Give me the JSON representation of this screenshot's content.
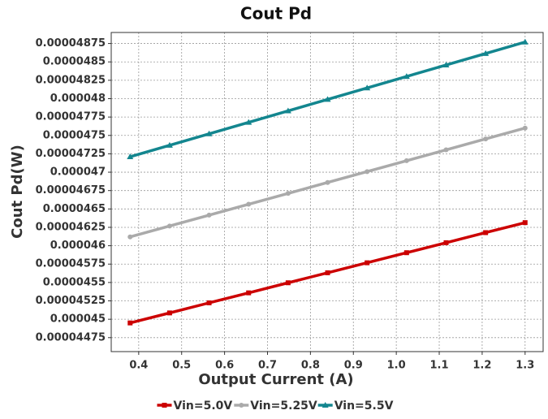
{
  "chart_data": {
    "type": "line",
    "title": "Cout Pd",
    "xlabel": "Output Current (A)",
    "ylabel": "Cout Pd(W)",
    "x": [
      0.38,
      0.472,
      0.564,
      0.656,
      0.748,
      0.84,
      0.932,
      1.024,
      1.116,
      1.208,
      1.3
    ],
    "series": [
      {
        "name": "Vin=5.0V",
        "color": "#cc0000",
        "marker": "square",
        "values": [
          4.495e-05,
          4.5086e-05,
          4.5223e-05,
          4.5359e-05,
          4.5496e-05,
          4.5632e-05,
          4.5768e-05,
          4.5905e-05,
          4.6041e-05,
          4.6178e-05,
          4.6314e-05
        ]
      },
      {
        "name": "Vin=5.25V",
        "color": "#aaaaaa",
        "marker": "circle",
        "values": [
          4.612e-05,
          4.6268e-05,
          4.6416e-05,
          4.6564e-05,
          4.6712e-05,
          4.686e-05,
          4.7008e-05,
          4.7156e-05,
          4.7304e-05,
          4.7452e-05,
          4.76e-05
        ]
      },
      {
        "name": "Vin=5.5V",
        "color": "#13868f",
        "marker": "triangle",
        "values": [
          4.721e-05,
          4.7366e-05,
          4.7522e-05,
          4.7678e-05,
          4.7834e-05,
          4.799e-05,
          4.8146e-05,
          4.8302e-05,
          4.8458e-05,
          4.8614e-05,
          4.877e-05
        ]
      }
    ],
    "xlim": [
      0.336,
      1.342
    ],
    "xticks": [
      0.4,
      0.5,
      0.6,
      0.7,
      0.8,
      0.9,
      {
        "value": 1,
        "label": "1.0"
      },
      1.1,
      1.2,
      1.3
    ],
    "ylim": [
      4.456e-05,
      4.89e-05
    ],
    "yticks": [
      4.475e-05,
      4.5e-05,
      4.525e-05,
      4.55e-05,
      4.575e-05,
      4.6e-05,
      4.625e-05,
      4.65e-05,
      4.675e-05,
      4.7e-05,
      4.725e-05,
      4.75e-05,
      4.775e-05,
      4.8e-05,
      4.825e-05,
      4.85e-05,
      4.875e-05
    ],
    "grid": true,
    "legend": "bottom"
  }
}
